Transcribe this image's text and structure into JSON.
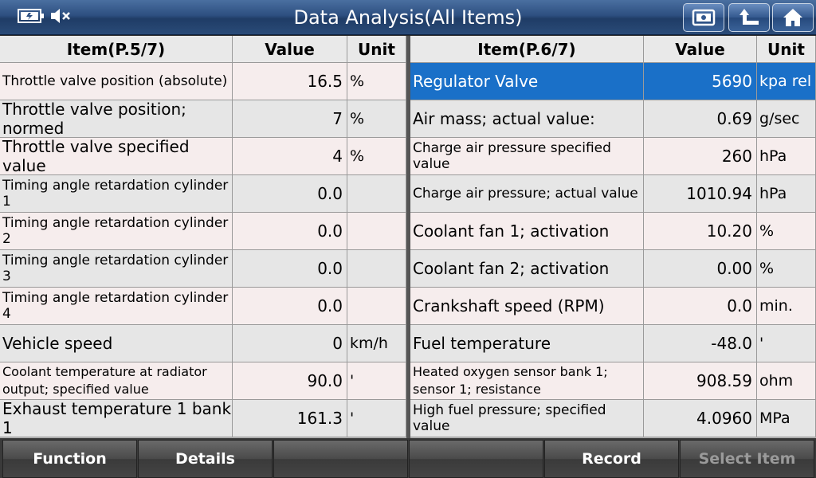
{
  "header": {
    "title": "Data Analysis(All Items)"
  },
  "left_table": {
    "columns": {
      "item": "Item(P.5/7)",
      "value": "Value",
      "unit": "Unit"
    },
    "rows": [
      {
        "item": "Throttle valve position (absolute)",
        "value": "16.5",
        "unit": "%"
      },
      {
        "item": "Throttle valve position; normed",
        "value": "7",
        "unit": "%"
      },
      {
        "item": "Throttle valve specified value",
        "value": "4",
        "unit": "%"
      },
      {
        "item": "Timing angle retardation cylinder 1",
        "value": "0.0",
        "unit": ""
      },
      {
        "item": "Timing angle retardation cylinder 2",
        "value": "0.0",
        "unit": ""
      },
      {
        "item": "Timing angle retardation cylinder 3",
        "value": "0.0",
        "unit": ""
      },
      {
        "item": "Timing angle retardation cylinder 4",
        "value": "0.0",
        "unit": ""
      },
      {
        "item": "Vehicle speed",
        "value": "0",
        "unit": "km/h"
      },
      {
        "item": "Coolant temperature at radiator output; specified value",
        "value": "90.0",
        "unit": "'"
      },
      {
        "item": "Exhaust temperature 1 bank 1",
        "value": "161.3",
        "unit": "'"
      }
    ]
  },
  "right_table": {
    "columns": {
      "item": "Item(P.6/7)",
      "value": "Value",
      "unit": "Unit"
    },
    "rows": [
      {
        "item": "Regulator Valve",
        "value": "5690",
        "unit": "kpa rel",
        "selected": true
      },
      {
        "item": "Air mass; actual value:",
        "value": "0.69",
        "unit": "g/sec"
      },
      {
        "item": "Charge air pressure specified value",
        "value": "260",
        "unit": "hPa"
      },
      {
        "item": "Charge air pressure; actual value",
        "value": "1010.94",
        "unit": "hPa"
      },
      {
        "item": "Coolant fan 1; activation",
        "value": "10.20",
        "unit": "%"
      },
      {
        "item": "Coolant fan 2; activation",
        "value": "0.00",
        "unit": "%"
      },
      {
        "item": "Crankshaft speed (RPM)",
        "value": "0.0",
        "unit": "min."
      },
      {
        "item": "Fuel temperature",
        "value": "-48.0",
        "unit": "'"
      },
      {
        "item": "Heated oxygen sensor bank 1; sensor 1; resistance",
        "value": "908.59",
        "unit": "ohm"
      },
      {
        "item": "High fuel pressure; specified value",
        "value": "4.0960",
        "unit": "MPa"
      }
    ]
  },
  "toolbar": {
    "buttons": [
      {
        "label": "Function",
        "enabled": true
      },
      {
        "label": "Details",
        "enabled": true
      },
      {
        "label": "",
        "enabled": true
      },
      {
        "label": "",
        "enabled": true
      },
      {
        "label": "Record",
        "enabled": true
      },
      {
        "label": "Select Item",
        "enabled": false
      }
    ]
  },
  "icons": {
    "status": [
      "battery-icon",
      "mute-icon"
    ],
    "title_buttons": [
      "screenshot-icon",
      "back-icon",
      "home-icon"
    ]
  },
  "colors": {
    "selected_row": "#1a70c8",
    "title_bar": "#2d4f80"
  }
}
